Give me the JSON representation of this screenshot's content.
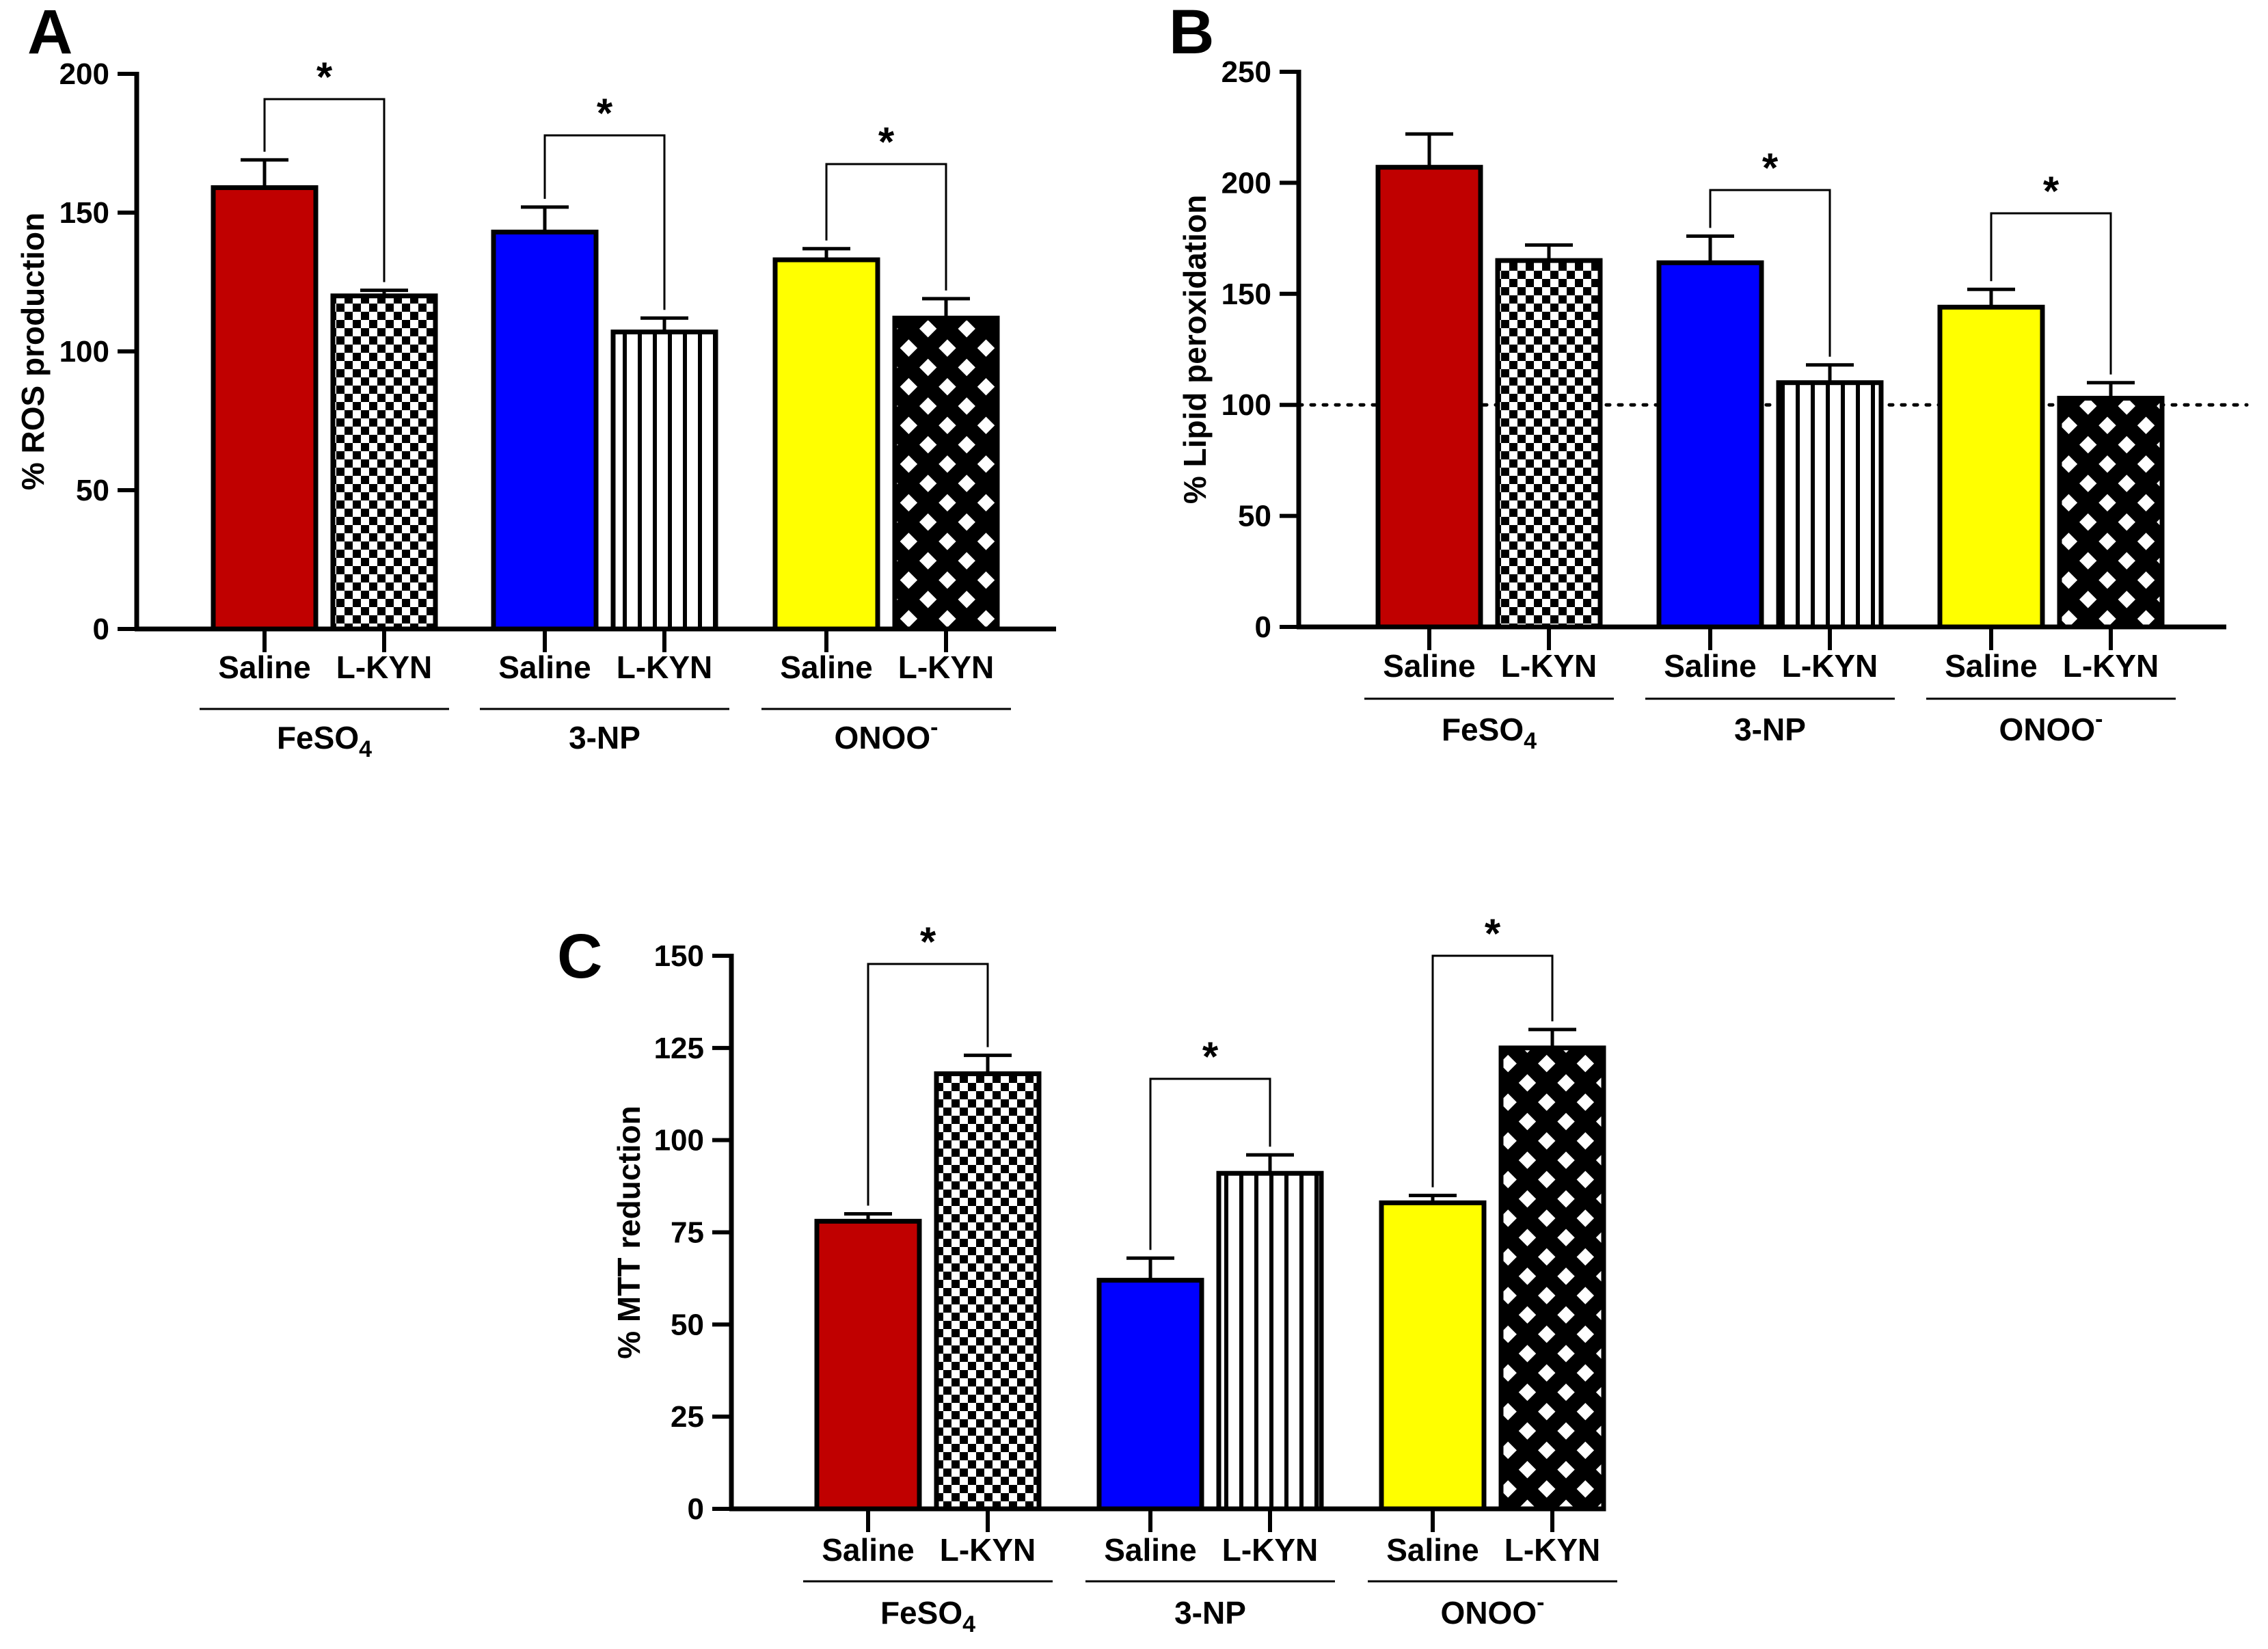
{
  "chart_data": [
    {
      "type": "bar",
      "panel": "A",
      "ylabel": "% ROS production",
      "ylim": [
        0,
        200
      ],
      "yticks": [
        0,
        50,
        100,
        150,
        200
      ],
      "reference_line": null,
      "groups": [
        {
          "name": "FeSO",
          "subscript": "4",
          "superscript": "",
          "bars": [
            {
              "label": "Saline",
              "value": 159,
              "error": 10,
              "color": "#C00000",
              "pattern": "solid"
            },
            {
              "label": "L-KYN",
              "value": 120,
              "error": 2,
              "color": "#ffffff",
              "pattern": "checker"
            }
          ],
          "significance": "*"
        },
        {
          "name": "3-NP",
          "subscript": "",
          "superscript": "",
          "bars": [
            {
              "label": "Saline",
              "value": 143,
              "error": 9,
              "color": "#0000FF",
              "pattern": "solid"
            },
            {
              "label": "L-KYN",
              "value": 107,
              "error": 5,
              "color": "#ffffff",
              "pattern": "vstripes"
            }
          ],
          "significance": "*"
        },
        {
          "name": "ONOO",
          "subscript": "",
          "superscript": "-",
          "bars": [
            {
              "label": "Saline",
              "value": 133,
              "error": 4,
              "color": "#FFFF00",
              "pattern": "solid"
            },
            {
              "label": "L-KYN",
              "value": 112,
              "error": 7,
              "color": "#ffffff",
              "pattern": "diamond"
            }
          ],
          "significance": "*"
        }
      ]
    },
    {
      "type": "bar",
      "panel": "B",
      "ylabel": "% Lipid peroxidation",
      "ylim": [
        0,
        250
      ],
      "yticks": [
        0,
        50,
        100,
        150,
        200,
        250
      ],
      "reference_line": 100,
      "groups": [
        {
          "name": "FeSO",
          "subscript": "4",
          "superscript": "",
          "bars": [
            {
              "label": "Saline",
              "value": 207,
              "error": 15,
              "color": "#C00000",
              "pattern": "solid"
            },
            {
              "label": "L-KYN",
              "value": 165,
              "error": 7,
              "color": "#ffffff",
              "pattern": "checker"
            }
          ],
          "significance": ""
        },
        {
          "name": "3-NP",
          "subscript": "",
          "superscript": "",
          "bars": [
            {
              "label": "Saline",
              "value": 164,
              "error": 12,
              "color": "#0000FF",
              "pattern": "solid"
            },
            {
              "label": "L-KYN",
              "value": 110,
              "error": 8,
              "color": "#ffffff",
              "pattern": "vstripes"
            }
          ],
          "significance": "*"
        },
        {
          "name": "ONOO",
          "subscript": "",
          "superscript": "-",
          "bars": [
            {
              "label": "Saline",
              "value": 144,
              "error": 8,
              "color": "#FFFF00",
              "pattern": "solid"
            },
            {
              "label": "L-KYN",
              "value": 103,
              "error": 7,
              "color": "#ffffff",
              "pattern": "diamond"
            }
          ],
          "significance": "*"
        }
      ]
    },
    {
      "type": "bar",
      "panel": "C",
      "ylabel": "% MTT reduction",
      "ylim": [
        0,
        150
      ],
      "yticks": [
        0,
        25,
        50,
        75,
        100,
        125,
        150
      ],
      "reference_line": null,
      "groups": [
        {
          "name": "FeSO",
          "subscript": "4",
          "superscript": "",
          "bars": [
            {
              "label": "Saline",
              "value": 78,
              "error": 2,
              "color": "#C00000",
              "pattern": "solid"
            },
            {
              "label": "L-KYN",
              "value": 118,
              "error": 5,
              "color": "#ffffff",
              "pattern": "checker"
            }
          ],
          "significance": "*"
        },
        {
          "name": "3-NP",
          "subscript": "",
          "superscript": "",
          "bars": [
            {
              "label": "Saline",
              "value": 62,
              "error": 6,
              "color": "#0000FF",
              "pattern": "solid"
            },
            {
              "label": "L-KYN",
              "value": 91,
              "error": 5,
              "color": "#ffffff",
              "pattern": "vstripes"
            }
          ],
          "significance": "*"
        },
        {
          "name": "ONOO",
          "subscript": "",
          "superscript": "-",
          "bars": [
            {
              "label": "Saline",
              "value": 83,
              "error": 2,
              "color": "#FFFF00",
              "pattern": "solid"
            },
            {
              "label": "L-KYN",
              "value": 125,
              "error": 5,
              "color": "#ffffff",
              "pattern": "diamond"
            }
          ],
          "significance": "*"
        }
      ]
    }
  ]
}
